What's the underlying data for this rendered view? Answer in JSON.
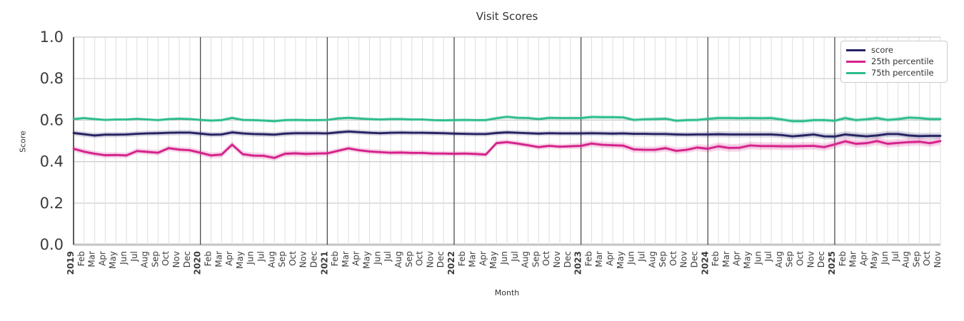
{
  "chart_data": {
    "type": "line",
    "title": "Visit Scores",
    "xlabel": "Month",
    "ylabel": "Score",
    "ylim": [
      0.0,
      1.0
    ],
    "yticks": [
      0.0,
      0.2,
      0.4,
      0.6,
      0.8,
      1.0
    ],
    "grid": true,
    "legend_position": "upper right",
    "year_start_indices": [
      0,
      12,
      24,
      36,
      48,
      60,
      72
    ],
    "x_labels": [
      "2019",
      "Feb",
      "Mar",
      "Apr",
      "May",
      "Jun",
      "Jul",
      "Aug",
      "Sep",
      "Oct",
      "Nov",
      "Dec",
      "2020",
      "Feb",
      "Mar",
      "Apr",
      "May",
      "Jun",
      "Jul",
      "Aug",
      "Sep",
      "Oct",
      "Nov",
      "Dec",
      "2021",
      "Feb",
      "Mar",
      "Apr",
      "May",
      "Jun",
      "Jul",
      "Aug",
      "Sep",
      "Oct",
      "Nov",
      "Dec",
      "2022",
      "Feb",
      "Mar",
      "Apr",
      "May",
      "Jun",
      "Jul",
      "Aug",
      "Sep",
      "Oct",
      "Nov",
      "Dec",
      "2023",
      "Feb",
      "Mar",
      "Apr",
      "May",
      "Jun",
      "Jul",
      "Aug",
      "Sep",
      "Oct",
      "Nov",
      "Dec",
      "2024",
      "Feb",
      "Mar",
      "Apr",
      "May",
      "Jun",
      "Jul",
      "Aug",
      "Sep",
      "Oct",
      "Nov",
      "Dec",
      "2025",
      "Feb",
      "Mar",
      "Apr",
      "May",
      "Jun",
      "Jul",
      "Aug",
      "Sep",
      "Oct",
      "Nov"
    ],
    "series": [
      {
        "name": "score",
        "color": "#262262",
        "band_halfwidth_by_year": [
          0.013,
          0.013,
          0.012,
          0.012,
          0.013,
          0.015,
          0.016
        ],
        "values": [
          0.538,
          0.532,
          0.526,
          0.53,
          0.53,
          0.531,
          0.534,
          0.536,
          0.537,
          0.539,
          0.54,
          0.54,
          0.535,
          0.53,
          0.531,
          0.541,
          0.536,
          0.533,
          0.532,
          0.53,
          0.535,
          0.537,
          0.537,
          0.537,
          0.536,
          0.541,
          0.545,
          0.542,
          0.539,
          0.537,
          0.539,
          0.54,
          0.539,
          0.539,
          0.538,
          0.537,
          0.535,
          0.534,
          0.533,
          0.533,
          0.538,
          0.541,
          0.539,
          0.537,
          0.535,
          0.537,
          0.536,
          0.536,
          0.536,
          0.537,
          0.536,
          0.535,
          0.536,
          0.534,
          0.534,
          0.533,
          0.533,
          0.531,
          0.53,
          0.531,
          0.531,
          0.532,
          0.531,
          0.531,
          0.531,
          0.531,
          0.531,
          0.528,
          0.522,
          0.526,
          0.531,
          0.522,
          0.521,
          0.531,
          0.526,
          0.522,
          0.526,
          0.533,
          0.533,
          0.526,
          0.523,
          0.524,
          0.524
        ]
      },
      {
        "name": "25th percentile",
        "color": "#d5218a",
        "band_halfwidth_by_year": [
          0.014,
          0.015,
          0.013,
          0.013,
          0.016,
          0.019,
          0.019
        ],
        "values": [
          0.462,
          0.448,
          0.438,
          0.431,
          0.432,
          0.43,
          0.451,
          0.447,
          0.443,
          0.465,
          0.458,
          0.455,
          0.443,
          0.43,
          0.434,
          0.482,
          0.436,
          0.429,
          0.428,
          0.418,
          0.438,
          0.44,
          0.437,
          0.439,
          0.44,
          0.452,
          0.464,
          0.455,
          0.449,
          0.446,
          0.443,
          0.444,
          0.442,
          0.442,
          0.439,
          0.439,
          0.438,
          0.439,
          0.437,
          0.434,
          0.489,
          0.494,
          0.487,
          0.479,
          0.47,
          0.476,
          0.472,
          0.474,
          0.476,
          0.487,
          0.481,
          0.479,
          0.477,
          0.459,
          0.457,
          0.457,
          0.465,
          0.452,
          0.457,
          0.468,
          0.462,
          0.474,
          0.466,
          0.467,
          0.478,
          0.475,
          0.475,
          0.474,
          0.474,
          0.475,
          0.476,
          0.47,
          0.483,
          0.498,
          0.486,
          0.489,
          0.499,
          0.486,
          0.49,
          0.494,
          0.496,
          0.489,
          0.499
        ]
      },
      {
        "name": "75th percentile",
        "color": "#2dbd8e",
        "band_halfwidth_by_year": [
          0.008,
          0.009,
          0.008,
          0.009,
          0.01,
          0.011,
          0.011
        ],
        "values": [
          0.605,
          0.61,
          0.605,
          0.601,
          0.603,
          0.603,
          0.606,
          0.603,
          0.6,
          0.605,
          0.607,
          0.605,
          0.601,
          0.598,
          0.6,
          0.611,
          0.601,
          0.6,
          0.598,
          0.595,
          0.6,
          0.601,
          0.6,
          0.6,
          0.601,
          0.608,
          0.611,
          0.608,
          0.605,
          0.603,
          0.605,
          0.605,
          0.603,
          0.603,
          0.6,
          0.599,
          0.6,
          0.601,
          0.6,
          0.6,
          0.609,
          0.616,
          0.611,
          0.61,
          0.605,
          0.611,
          0.61,
          0.61,
          0.61,
          0.615,
          0.614,
          0.614,
          0.613,
          0.601,
          0.604,
          0.605,
          0.607,
          0.597,
          0.6,
          0.601,
          0.606,
          0.61,
          0.61,
          0.609,
          0.61,
          0.609,
          0.61,
          0.603,
          0.595,
          0.595,
          0.6,
          0.6,
          0.597,
          0.61,
          0.6,
          0.604,
          0.61,
          0.601,
          0.605,
          0.612,
          0.61,
          0.605,
          0.605
        ]
      }
    ],
    "colors": {
      "grid_minor": "#dedede",
      "grid_major_h": "#c9c9c9",
      "zero_line": "#c3c3c3",
      "year_line": "#3f3f3f",
      "spine": "#262626",
      "tick_text": "#3c3c3c"
    }
  }
}
